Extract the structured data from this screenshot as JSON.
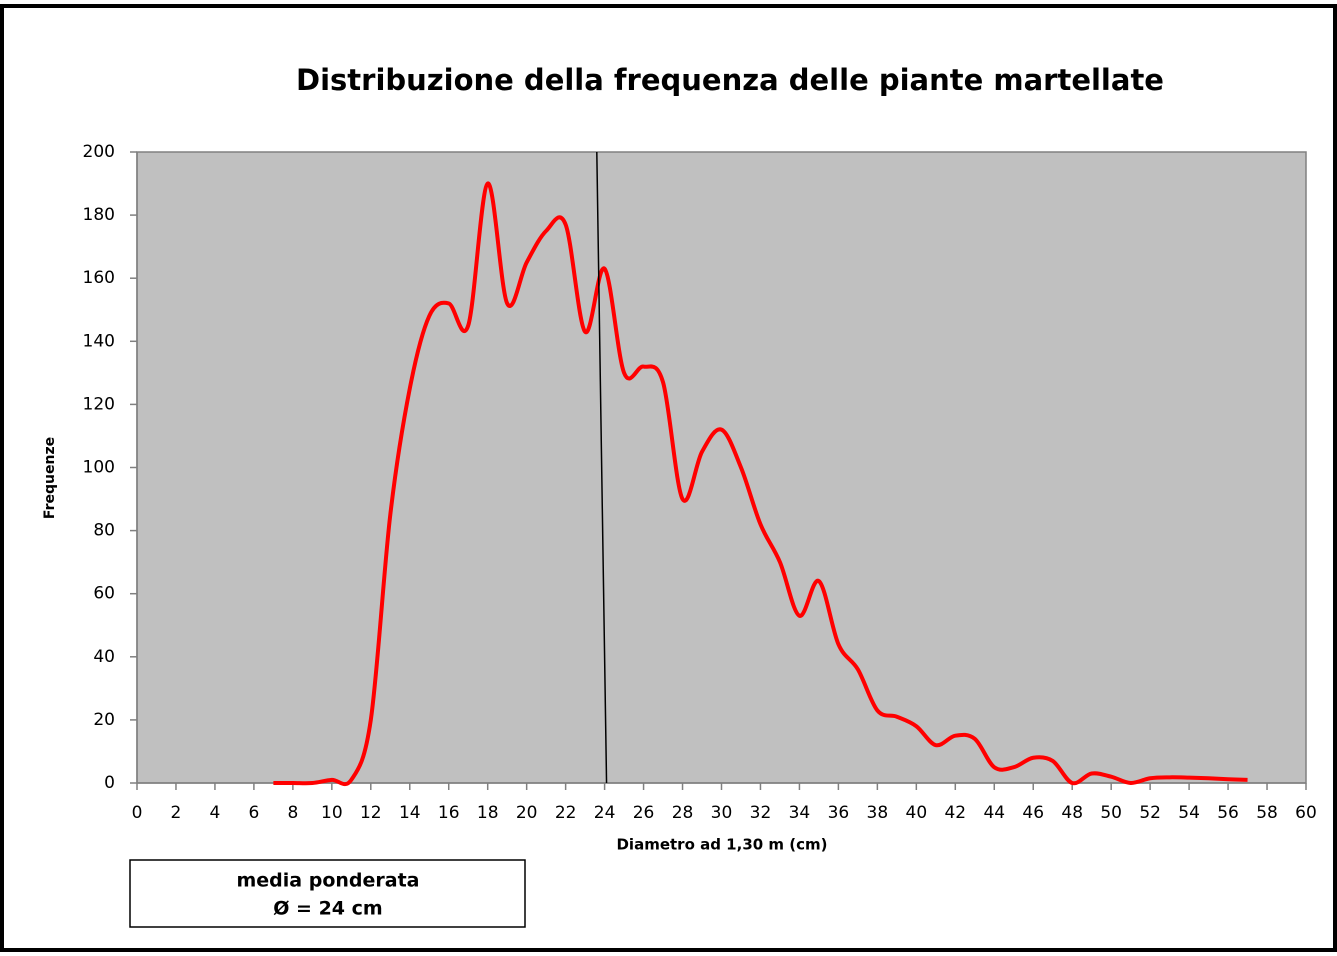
{
  "chart_data": {
    "type": "line",
    "title": "Distribuzione della frequenza delle piante martellate",
    "x_label": "Diametro ad 1,30 m (cm)",
    "y_label": "Frequenze",
    "annotation": [
      "media ponderata",
      "Ø = 24 cm"
    ],
    "x": [
      7,
      8,
      9,
      10,
      11,
      12,
      13,
      14,
      15,
      16,
      17,
      18,
      19,
      20,
      21,
      22,
      23,
      24,
      25,
      26,
      27,
      28,
      29,
      30,
      31,
      32,
      33,
      34,
      35,
      36,
      37,
      38,
      39,
      40,
      41,
      42,
      43,
      44,
      45,
      46,
      47,
      48,
      49,
      50,
      51,
      52,
      53,
      54,
      55,
      56,
      57
    ],
    "series": [
      {
        "color": "#ff0000",
        "values": [
          0,
          0,
          0,
          1,
          1,
          20,
          85,
          125,
          148,
          152,
          145,
          190,
          152,
          165,
          175,
          177,
          143,
          163,
          130,
          132,
          127,
          90,
          105,
          112,
          100,
          82,
          70,
          53,
          64,
          44,
          36,
          23,
          21,
          18,
          12,
          15,
          14,
          5,
          5,
          8,
          7,
          0,
          3,
          2,
          0,
          1.5,
          1.8,
          1.7,
          1.5,
          1.2,
          1
        ]
      }
    ],
    "mean_line_x": [
      23.6,
      24.1
    ],
    "xlim": [
      0,
      60
    ],
    "xticks": [
      0,
      2,
      4,
      6,
      8,
      10,
      12,
      14,
      16,
      18,
      20,
      22,
      24,
      26,
      28,
      30,
      32,
      34,
      36,
      38,
      40,
      42,
      44,
      46,
      48,
      50,
      52,
      54,
      56,
      58,
      60
    ],
    "ylim": [
      0,
      200
    ],
    "yticks": [
      0,
      20,
      40,
      60,
      80,
      100,
      120,
      140,
      160,
      180,
      200
    ],
    "plot_background": "#c0c0c0"
  }
}
